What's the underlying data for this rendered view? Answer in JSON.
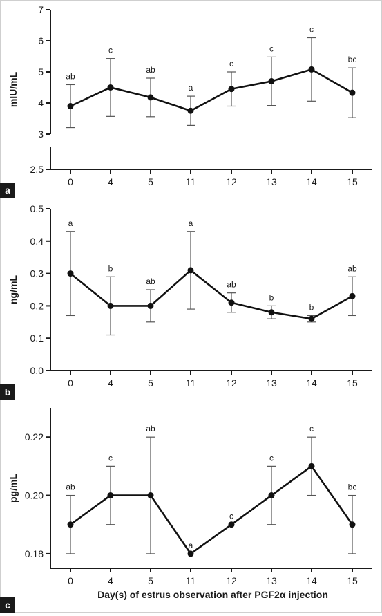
{
  "xlabel": "Day(s) of estrus observation after PGF2α injection",
  "chart_data": [
    {
      "type": "line",
      "panel_label": "a",
      "ylabel": "mIU/mL",
      "categories": [
        "0",
        "4",
        "5",
        "11",
        "12",
        "13",
        "14",
        "15"
      ],
      "values": [
        3.9,
        4.5,
        4.18,
        3.75,
        4.45,
        4.7,
        5.08,
        4.33
      ],
      "error": [
        0.69,
        0.93,
        0.62,
        0.47,
        0.55,
        0.78,
        1.02,
        0.8
      ],
      "significance": [
        "ab",
        "c",
        "ab",
        "a",
        "c",
        "c",
        "c",
        "bc"
      ],
      "yticks": [
        "2.5",
        "3",
        "4",
        "5",
        "6",
        "7"
      ],
      "ylim": [
        2.5,
        7
      ],
      "axis_break": [
        2.5,
        3
      ]
    },
    {
      "type": "line",
      "panel_label": "b",
      "ylabel": "ng/mL",
      "categories": [
        "0",
        "4",
        "5",
        "11",
        "12",
        "13",
        "14",
        "15"
      ],
      "values": [
        0.3,
        0.2,
        0.2,
        0.31,
        0.21,
        0.18,
        0.16,
        0.23
      ],
      "error": [
        0.13,
        0.09,
        0.05,
        0.12,
        0.03,
        0.02,
        0.01,
        0.06
      ],
      "significance": [
        "a",
        "b",
        "ab",
        "a",
        "ab",
        "b",
        "b",
        "ab"
      ],
      "yticks": [
        "0.0",
        "0.1",
        "0.2",
        "0.3",
        "0.4",
        "0.5"
      ],
      "ylim": [
        0,
        0.5
      ]
    },
    {
      "type": "line",
      "panel_label": "c",
      "ylabel": "pg/mL",
      "categories": [
        "0",
        "4",
        "5",
        "11",
        "12",
        "13",
        "14",
        "15"
      ],
      "values": [
        0.19,
        0.2,
        0.2,
        0.18,
        0.19,
        0.2,
        0.21,
        0.19
      ],
      "error": [
        0.01,
        0.01,
        0.02,
        0,
        0,
        0.01,
        0.01,
        0.01
      ],
      "significance": [
        "ab",
        "c",
        "ab",
        "a",
        "c",
        "c",
        "c",
        "bc"
      ],
      "yticks": [
        "0.18",
        "0.20",
        "0.22"
      ],
      "ylim": [
        0.175,
        0.23
      ]
    }
  ]
}
